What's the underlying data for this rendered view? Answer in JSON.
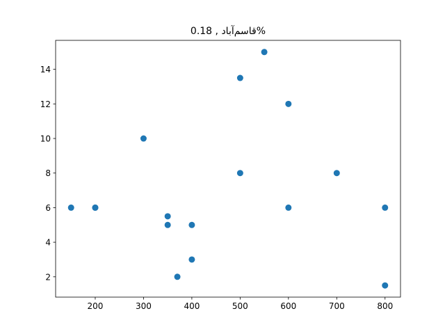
{
  "chart_data": {
    "type": "scatter",
    "title": "قاسم‌آباد , 0.18%",
    "xlabel": "",
    "ylabel": "",
    "xlim": [
      118,
      832
    ],
    "ylim": [
      0.825,
      15.675
    ],
    "x_ticks": [
      200,
      300,
      400,
      500,
      600,
      700,
      800
    ],
    "y_ticks": [
      2,
      4,
      6,
      8,
      10,
      12,
      14
    ],
    "x_tick_labels": [
      "200",
      "300",
      "400",
      "500",
      "600",
      "700",
      "800"
    ],
    "y_tick_labels": [
      "2",
      "4",
      "6",
      "8",
      "10",
      "12",
      "14"
    ],
    "grid": false,
    "marker_color": "#1f77b4",
    "points": [
      {
        "x": 150,
        "y": 6
      },
      {
        "x": 200,
        "y": 6
      },
      {
        "x": 200,
        "y": 6
      },
      {
        "x": 300,
        "y": 10
      },
      {
        "x": 350,
        "y": 5.5
      },
      {
        "x": 350,
        "y": 5
      },
      {
        "x": 370,
        "y": 2
      },
      {
        "x": 400,
        "y": 5
      },
      {
        "x": 400,
        "y": 3
      },
      {
        "x": 500,
        "y": 13.5
      },
      {
        "x": 500,
        "y": 8
      },
      {
        "x": 550,
        "y": 15
      },
      {
        "x": 600,
        "y": 12
      },
      {
        "x": 600,
        "y": 6
      },
      {
        "x": 700,
        "y": 8
      },
      {
        "x": 800,
        "y": 6
      },
      {
        "x": 800,
        "y": 1.5
      }
    ]
  }
}
